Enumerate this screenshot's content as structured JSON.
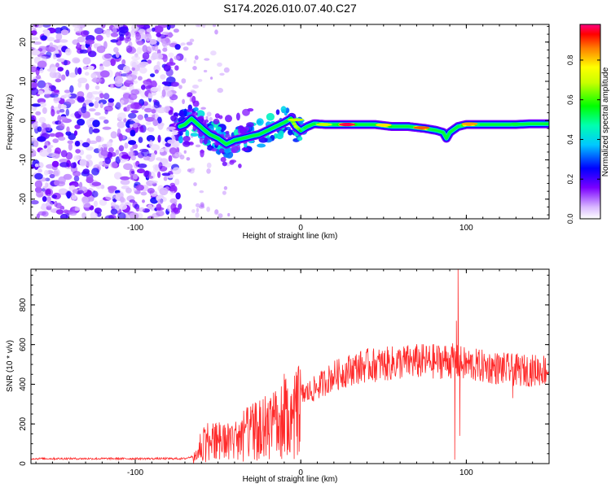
{
  "title": "S174.2026.010.07.40.C27",
  "chart_data": [
    {
      "type": "heatmap",
      "xlabel": "Height of straight line (km)",
      "ylabel": "Frequency (Hz)",
      "xlim": [
        -163,
        150
      ],
      "ylim": [
        -25,
        24.5
      ],
      "x_ticks": [
        -100,
        0,
        100
      ],
      "y_ticks": [
        -20,
        -10,
        0,
        10,
        20
      ],
      "noise_region_xlim": [
        -163,
        -73
      ],
      "colorbar": {
        "label": "Normalized spectral amplitude",
        "range": [
          0,
          0.98
        ],
        "ticks": [
          "0.0",
          "0.2",
          "0.4",
          "0.6",
          "0.8"
        ],
        "tick_values": [
          0.0,
          0.2,
          0.4,
          0.6,
          0.8
        ]
      },
      "ridge": [
        [
          -73,
          -1.5
        ],
        [
          -70,
          -1.0
        ],
        [
          -66,
          0.5
        ],
        [
          -62,
          -1.0
        ],
        [
          -58,
          -2.5
        ],
        [
          -55,
          -3.5
        ],
        [
          -50,
          -4.5
        ],
        [
          -45,
          -6.0
        ],
        [
          -40,
          -5.0
        ],
        [
          -35,
          -4.5
        ],
        [
          -30,
          -4.0
        ],
        [
          -25,
          -3.5
        ],
        [
          -20,
          -2.5
        ],
        [
          -15,
          -1.5
        ],
        [
          -10,
          -0.5
        ],
        [
          -6,
          0.5
        ],
        [
          -3,
          -1.5
        ],
        [
          0,
          -2.5
        ],
        [
          4,
          -1.5
        ],
        [
          8,
          -0.8
        ],
        [
          15,
          -1.0
        ],
        [
          25,
          -1.0
        ],
        [
          35,
          -1.0
        ],
        [
          45,
          -1.0
        ],
        [
          55,
          -1.5
        ],
        [
          65,
          -1.5
        ],
        [
          75,
          -2.0
        ],
        [
          82,
          -2.5
        ],
        [
          86,
          -3.0
        ],
        [
          88,
          -4.5
        ],
        [
          90,
          -3.0
        ],
        [
          95,
          -1.5
        ],
        [
          100,
          -1.0
        ],
        [
          110,
          -1.0
        ],
        [
          120,
          -1.0
        ],
        [
          130,
          -1.0
        ],
        [
          140,
          -0.8
        ],
        [
          150,
          -0.8
        ]
      ],
      "peaks": [
        {
          "x": 28,
          "y": -1.0,
          "amp": 0.98
        },
        {
          "x": 73,
          "y": -1.8,
          "amp": 0.9
        },
        {
          "x": 102,
          "y": -0.8,
          "amp": 0.85
        },
        {
          "x": 14,
          "y": -1.0,
          "amp": 0.7
        },
        {
          "x": 50,
          "y": -1.1,
          "amp": 0.8
        },
        {
          "x": -3,
          "y": 0.2,
          "amp": 0.7
        },
        {
          "x": 130,
          "y": -0.9,
          "amp": 0.55
        }
      ]
    },
    {
      "type": "line",
      "xlabel": "Height of straight line (km)",
      "ylabel": "SNR (10 * v/v)",
      "xlim": [
        -163,
        150
      ],
      "ylim": [
        0,
        980
      ],
      "x_ticks": [
        -100,
        0,
        100
      ],
      "y_ticks": [
        0,
        200,
        400,
        600,
        800
      ],
      "color": "#ff2a2a",
      "envelope": [
        [
          -163,
          25
        ],
        [
          -80,
          25
        ],
        [
          -70,
          25
        ],
        [
          -64,
          40
        ],
        [
          -60,
          140
        ],
        [
          -55,
          150
        ],
        [
          -50,
          150
        ],
        [
          -45,
          155
        ],
        [
          -40,
          145
        ],
        [
          -35,
          190
        ],
        [
          -30,
          205
        ],
        [
          -25,
          225
        ],
        [
          -20,
          250
        ],
        [
          -15,
          285
        ],
        [
          -10,
          315
        ],
        [
          -5,
          330
        ],
        [
          0,
          345
        ],
        [
          5,
          360
        ],
        [
          10,
          385
        ],
        [
          15,
          415
        ],
        [
          20,
          445
        ],
        [
          25,
          455
        ],
        [
          30,
          475
        ],
        [
          40,
          495
        ],
        [
          50,
          500
        ],
        [
          60,
          510
        ],
        [
          70,
          515
        ],
        [
          80,
          515
        ],
        [
          90,
          520
        ],
        [
          100,
          500
        ],
        [
          110,
          490
        ],
        [
          120,
          480
        ],
        [
          130,
          470
        ],
        [
          140,
          470
        ],
        [
          150,
          475
        ]
      ],
      "spikes": [
        {
          "x": 95,
          "y": 980
        },
        {
          "x": 93,
          "y": 20
        },
        {
          "x": 94,
          "y": 720
        },
        {
          "x": 96,
          "y": 140
        },
        {
          "x": 128,
          "y": 330
        }
      ]
    }
  ]
}
